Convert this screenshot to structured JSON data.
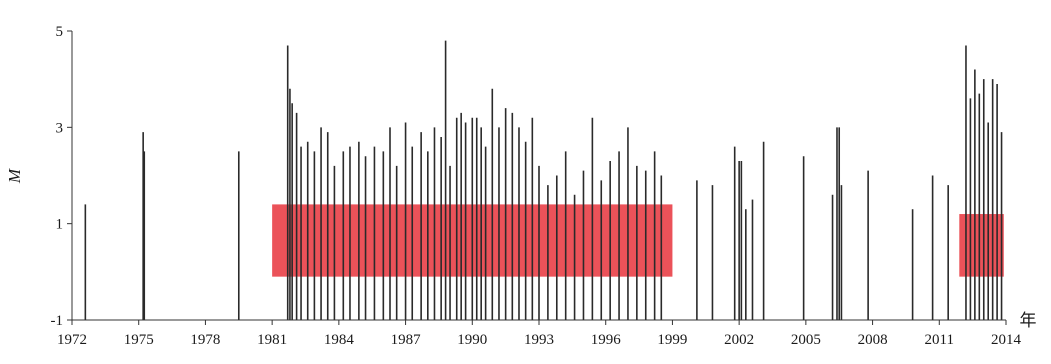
{
  "chart_data": {
    "type": "bar",
    "title": "",
    "xlabel": "年",
    "ylabel": "M",
    "xlim": [
      1972,
      2014
    ],
    "ylim": [
      -1,
      5
    ],
    "yticks": [
      -1,
      1,
      3,
      5
    ],
    "xticks": [
      1972,
      1975,
      1978,
      1981,
      1984,
      1987,
      1990,
      1993,
      1996,
      1999,
      2002,
      2005,
      2008,
      2011,
      2014
    ],
    "grid": false,
    "mark_color": "#2a2a2a",
    "highlight_color": "#e8343c",
    "highlighted_periods": [
      {
        "x_range": [
          1981.0,
          1999.0
        ],
        "y_range": [
          -0.1,
          1.4
        ]
      },
      {
        "x_range": [
          2011.9,
          2013.9
        ],
        "y_range": [
          -0.1,
          1.2
        ]
      }
    ],
    "series": [
      {
        "x": [
          1972.6,
          1975.2,
          1975.25,
          1979.5,
          1981.7,
          1981.8,
          1981.9,
          1982.1,
          1982.3,
          1982.6,
          1982.9,
          1983.2,
          1983.5,
          1983.8,
          1984.2,
          1984.5,
          1984.9,
          1985.2,
          1985.6,
          1986.0,
          1986.3,
          1986.6,
          1987.0,
          1987.3,
          1987.7,
          1988.0,
          1988.3,
          1988.6,
          1988.8,
          1989.0,
          1989.3,
          1989.5,
          1989.7,
          1990.0,
          1990.2,
          1990.4,
          1990.6,
          1990.9,
          1991.2,
          1991.5,
          1991.8,
          1992.1,
          1992.4,
          1992.7,
          1993.0,
          1993.4,
          1993.8,
          1994.2,
          1994.6,
          1995.0,
          1995.4,
          1995.8,
          1996.2,
          1996.6,
          1997.0,
          1997.4,
          1997.8,
          1998.2,
          1998.5,
          2000.1,
          2000.8,
          2001.8,
          2002.0,
          2002.1,
          2002.3,
          2002.6,
          2003.1,
          2004.9,
          2006.2,
          2006.4,
          2006.5,
          2006.6,
          2007.8,
          2009.8,
          2010.7,
          2011.4,
          2012.2,
          2012.4,
          2012.6,
          2012.8,
          2013.0,
          2013.2,
          2013.4,
          2013.6,
          2013.8
        ],
        "values": [
          1.4,
          2.9,
          2.5,
          2.5,
          4.7,
          3.8,
          3.5,
          3.3,
          2.6,
          2.7,
          2.5,
          3.0,
          2.9,
          2.2,
          2.5,
          2.6,
          2.7,
          2.4,
          2.6,
          2.5,
          3.0,
          2.2,
          3.1,
          2.6,
          2.9,
          2.5,
          3.0,
          2.8,
          4.8,
          2.2,
          3.2,
          3.3,
          3.1,
          3.2,
          3.2,
          3.0,
          2.6,
          3.8,
          3.0,
          3.4,
          3.3,
          3.0,
          2.7,
          3.2,
          2.2,
          1.8,
          2.0,
          2.5,
          1.6,
          2.1,
          3.2,
          1.9,
          2.3,
          2.5,
          3.0,
          2.2,
          2.1,
          2.5,
          2.0,
          1.9,
          1.8,
          2.6,
          2.3,
          2.3,
          1.3,
          1.5,
          2.7,
          2.4,
          1.6,
          3.0,
          3.0,
          1.8,
          2.1,
          1.3,
          2.0,
          1.8,
          4.7,
          3.6,
          4.2,
          3.7,
          4.0,
          3.1,
          4.0,
          3.9,
          2.9
        ]
      }
    ]
  }
}
